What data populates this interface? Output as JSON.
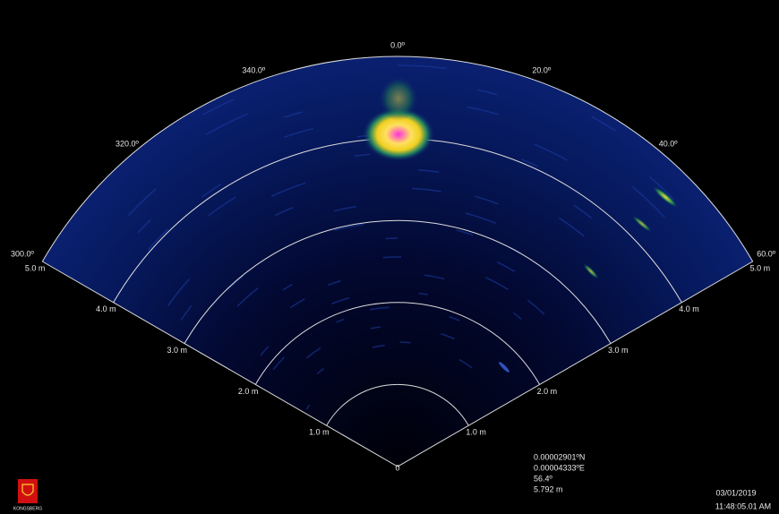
{
  "bearing_labels": [
    "300.0º",
    "320.0º",
    "340.0º",
    "0.0º",
    "20.0º",
    "40.0º",
    "60.0º"
  ],
  "range_labels_left": [
    "1.0 m",
    "2.0 m",
    "3.0 m",
    "4.0 m",
    "5.0 m"
  ],
  "range_labels_right": [
    "1.0 m",
    "2.0 m",
    "3.0 m",
    "4.0 m",
    "5.0 m"
  ],
  "apex_label": "0",
  "readout": [
    "0.00002901ºN",
    "0.00004333ºE",
    "56.4º",
    "5.792 m"
  ],
  "date": "03/01/2019",
  "time": "11:48:05.01 AM",
  "logo_text": "KONGSBERG"
}
